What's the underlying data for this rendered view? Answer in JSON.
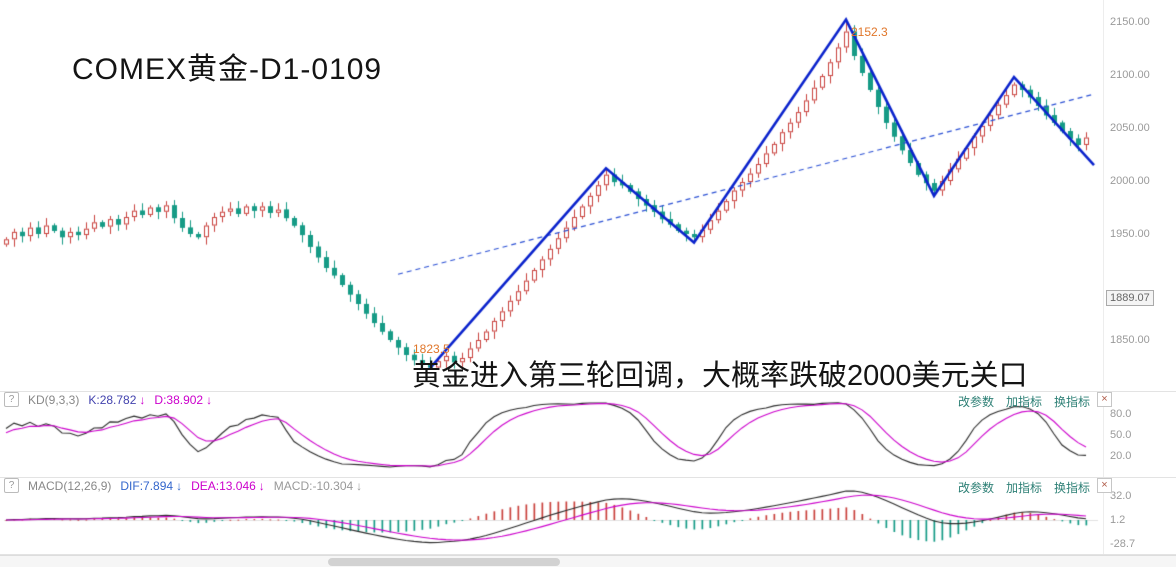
{
  "title": "COMEX黄金-D1-0109",
  "caption": "黄金进入第三轮回调，大概率跌破2000美元关口",
  "ui": {
    "help_glyph": "?",
    "close_glyph": "×",
    "arrow_down": "↓",
    "links": [
      "改参数",
      "加指标",
      "换指标"
    ]
  },
  "price_axis": {
    "labels": [
      "2150.00",
      "2100.00",
      "2050.00",
      "2000.00",
      "1950.00",
      "1850.00"
    ],
    "marked_price": "1889.07"
  },
  "kd": {
    "name": "KD(9,3,3)",
    "k_text": "K:28.782",
    "d_text": "D:38.902",
    "axis": [
      "80.0",
      "50.0",
      "20.0"
    ]
  },
  "macd": {
    "name": "MACD(12,26,9)",
    "dif_text": "DIF:7.894",
    "dea_text": "DEA:13.046",
    "macd_text": "MACD:-10.304",
    "axis": [
      "32.0",
      "1.2",
      "-28.7"
    ]
  },
  "chart_data": {
    "type": "candlestick",
    "symbol": "COMEX黄金",
    "timeframe": "D1",
    "label_date": "0109",
    "y_ticks": [
      2150,
      2100,
      2050,
      2000,
      1950,
      1850
    ],
    "marked_price": 1889.07,
    "closes": [
      1945,
      1952,
      1948,
      1956,
      1950,
      1958,
      1953,
      1947,
      1952,
      1949,
      1955,
      1961,
      1957,
      1964,
      1959,
      1966,
      1972,
      1968,
      1975,
      1971,
      1977,
      1965,
      1956,
      1950,
      1947,
      1958,
      1966,
      1971,
      1974,
      1969,
      1976,
      1972,
      1976,
      1970,
      1973,
      1965,
      1958,
      1949,
      1938,
      1928,
      1918,
      1911,
      1902,
      1893,
      1884,
      1875,
      1866,
      1858,
      1850,
      1843,
      1836,
      1831,
      1827,
      1824,
      1830,
      1835,
      1829,
      1833,
      1842,
      1850,
      1858,
      1868,
      1877,
      1887,
      1896,
      1906,
      1916,
      1926,
      1936,
      1946,
      1956,
      1966,
      1976,
      1986,
      1996,
      2006,
      1999,
      1996,
      1990,
      1983,
      1977,
      1971,
      1964,
      1959,
      1953,
      1950,
      1947,
      1954,
      1963,
      1972,
      1981,
      1991,
      1999,
      2007,
      2016,
      2026,
      2035,
      2046,
      2055,
      2065,
      2076,
      2088,
      2099,
      2112,
      2126,
      2141,
      2118,
      2102,
      2086,
      2070,
      2055,
      2042,
      2029,
      2017,
      2006,
      1998,
      1991,
      2000,
      2011,
      2021,
      2031,
      2042,
      2052,
      2062,
      2072,
      2081,
      2091,
      2086,
      2079,
      2071,
      2062,
      2055,
      2047,
      2040,
      2034,
      2041
    ],
    "high_annotation": {
      "text": "2152.3",
      "price": 2152.3
    },
    "low_annotation": {
      "text": "1823.5",
      "price": 1823.5
    },
    "zigzag_points": [
      [
        53,
        1823.5
      ],
      [
        75,
        2012
      ],
      [
        86,
        1942
      ],
      [
        105,
        2152.3
      ],
      [
        116,
        1986
      ],
      [
        126,
        2098
      ],
      [
        136,
        2015
      ]
    ],
    "trendline_points": [
      [
        49,
        1912
      ],
      [
        136,
        2082
      ]
    ],
    "indicators": {
      "kd": {
        "params": [
          9,
          3,
          3
        ],
        "k": 28.782,
        "d": 38.902
      },
      "macd": {
        "params": [
          12,
          26,
          9
        ],
        "dif": 7.894,
        "dea": 13.046,
        "hist": -10.304
      }
    },
    "colors": {
      "up": "#c9413d",
      "down": "#169b86",
      "zigzag": "#0b23cc",
      "trendline": "#2b50d4",
      "annotation": "#e0762a",
      "k_line": "#2a2a2a",
      "d_line": "#cc00cc",
      "dif_line": "#2a2a2a",
      "dea_line": "#cc00cc",
      "hist_pos": "#c9413d",
      "hist_neg": "#169b86",
      "zero_line": "#e0e0e0"
    }
  }
}
